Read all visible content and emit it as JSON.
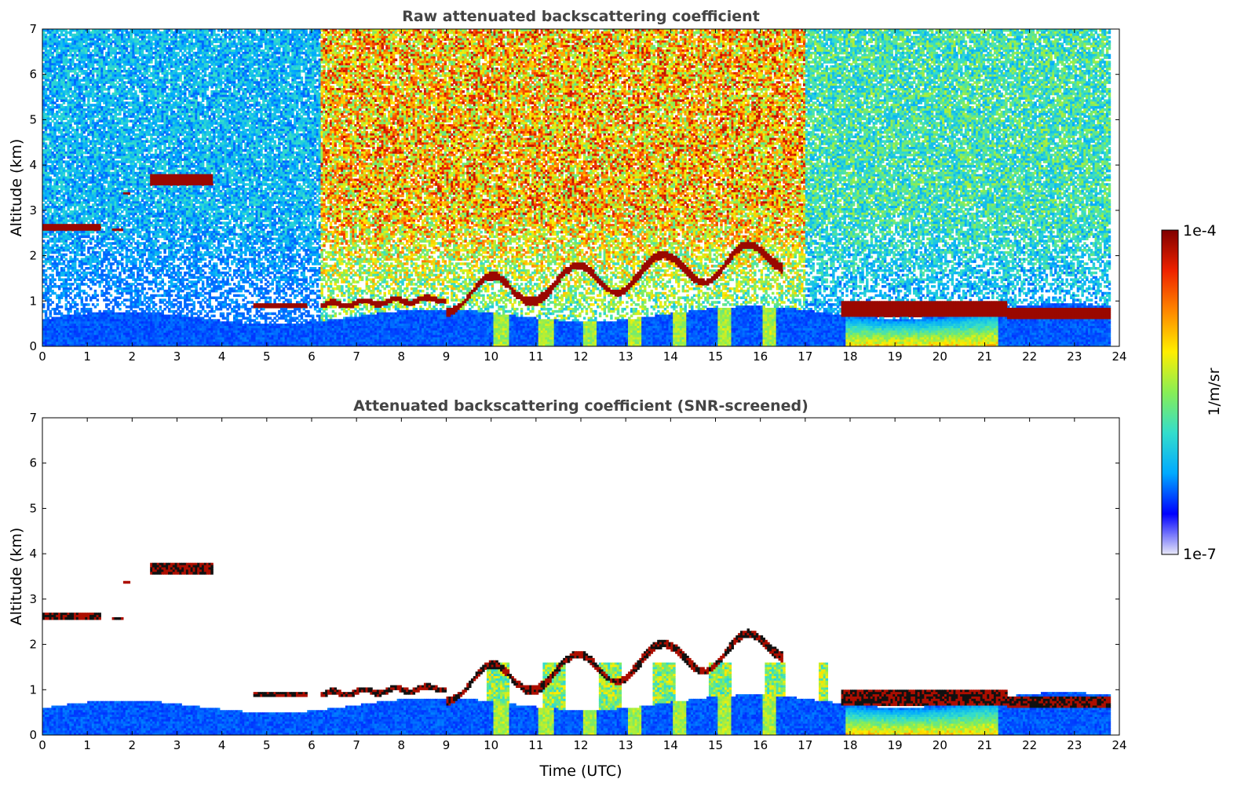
{
  "chart_data": [
    {
      "type": "heatmap",
      "title": "Raw attenuated backscattering coefficient",
      "xlabel": "",
      "ylabel": "Altitude (km)",
      "xlim": [
        0,
        24
      ],
      "ylim": [
        0,
        7
      ],
      "x_ticks": [
        "0",
        "1",
        "2",
        "3",
        "4",
        "5",
        "6",
        "7",
        "8",
        "9",
        "10",
        "11",
        "12",
        "13",
        "14",
        "15",
        "16",
        "17",
        "18",
        "19",
        "20",
        "21",
        "22",
        "23",
        "24"
      ],
      "y_ticks": [
        "0",
        "1",
        "2",
        "3",
        "4",
        "5",
        "6",
        "7"
      ],
      "data_end_hour": 23.8,
      "background_noise": [
        {
          "from_hour": 0,
          "to_hour": 6.2,
          "level": 0.3
        },
        {
          "from_hour": 6.2,
          "to_hour": 17.0,
          "level": 0.72
        },
        {
          "from_hour": 17.0,
          "to_hour": 23.8,
          "level": 0.42
        }
      ],
      "cloud_layers": [
        {
          "from_hour": 0.0,
          "to_hour": 1.3,
          "base_km": 2.55,
          "top_km": 2.7,
          "intensity": 1.0
        },
        {
          "from_hour": 1.55,
          "to_hour": 1.8,
          "base_km": 2.55,
          "top_km": 2.62,
          "intensity": 1.0
        },
        {
          "from_hour": 1.8,
          "to_hour": 1.95,
          "base_km": 3.33,
          "top_km": 3.4,
          "intensity": 1.0
        },
        {
          "from_hour": 2.4,
          "to_hour": 3.8,
          "base_km": 3.55,
          "top_km": 3.8,
          "intensity": 1.0
        },
        {
          "from_hour": 4.7,
          "to_hour": 5.9,
          "base_km": 0.85,
          "top_km": 0.95,
          "intensity": 0.9
        },
        {
          "from_hour": 6.2,
          "to_hour": 9.0,
          "base_km": 0.85,
          "top_km": 1.1,
          "intensity": 1.0
        },
        {
          "from_hour": 9.0,
          "to_hour": 16.5,
          "base_km": 1.0,
          "top_km": 2.4,
          "intensity": 1.0
        },
        {
          "from_hour": 17.8,
          "to_hour": 21.5,
          "base_km": 0.65,
          "top_km": 1.0,
          "intensity": 0.85
        },
        {
          "from_hour": 21.5,
          "to_hour": 23.8,
          "base_km": 0.6,
          "top_km": 0.85,
          "intensity": 1.0
        }
      ],
      "boundary_layer": {
        "top_km_start": 0.6,
        "top_km_end": 0.8
      }
    },
    {
      "type": "heatmap",
      "title": "Attenuated backscattering coefficient (SNR-screened)",
      "xlabel": "Time (UTC)",
      "ylabel": "Altitude (km)",
      "xlim": [
        0,
        24
      ],
      "ylim": [
        0,
        7
      ],
      "x_ticks": [
        "0",
        "1",
        "2",
        "3",
        "4",
        "5",
        "6",
        "7",
        "8",
        "9",
        "10",
        "11",
        "12",
        "13",
        "14",
        "15",
        "16",
        "17",
        "18",
        "19",
        "20",
        "21",
        "22",
        "23",
        "24"
      ],
      "y_ticks": [
        "0",
        "1",
        "2",
        "3",
        "4",
        "5",
        "6",
        "7"
      ],
      "data_end_hour": 23.8,
      "screened": true
    }
  ],
  "colorbar": {
    "label": "1/m/sr",
    "max_label": "1e-4",
    "min_label": "1e-7",
    "colormap": [
      "#e8e8f8",
      "#0000ff",
      "#00aaff",
      "#33ddcc",
      "#88ee55",
      "#ffee00",
      "#ff8800",
      "#ee2200",
      "#800000"
    ]
  }
}
